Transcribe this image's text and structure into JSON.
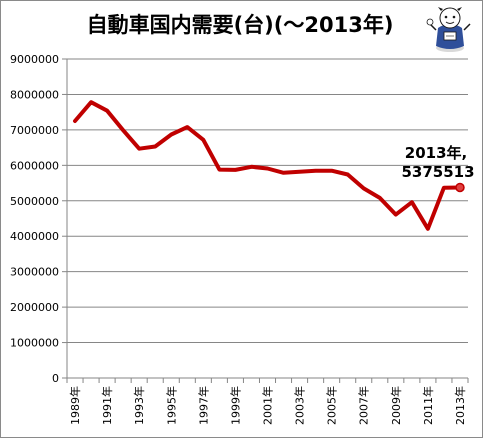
{
  "chart_data": {
    "type": "line",
    "title": "自動車国内需要(台)(〜2013年)",
    "xlabel": "",
    "ylabel": "",
    "ylim": [
      0,
      9000000
    ],
    "yticks": [
      0,
      1000000,
      2000000,
      3000000,
      4000000,
      5000000,
      6000000,
      7000000,
      8000000,
      9000000
    ],
    "ytick_labels": [
      "0",
      "1000000",
      "2000000",
      "3000000",
      "4000000",
      "5000000",
      "6000000",
      "7000000",
      "8000000",
      "9000000"
    ],
    "categories": [
      "1989年",
      "1990年",
      "1991年",
      "1992年",
      "1993年",
      "1994年",
      "1995年",
      "1996年",
      "1997年",
      "1998年",
      "1999年",
      "2000年",
      "2001年",
      "2002年",
      "2003年",
      "2004年",
      "2005年",
      "2006年",
      "2007年",
      "2008年",
      "2009年",
      "2010年",
      "2011年",
      "2012年",
      "2013年"
    ],
    "xtick_labels": [
      "1989年",
      "",
      "1991年",
      "",
      "1993年",
      "",
      "1995年",
      "",
      "1997年",
      "",
      "1999年",
      "",
      "2001年",
      "",
      "2003年",
      "",
      "2005年",
      "",
      "2007年",
      "",
      "2009年",
      "",
      "2011年",
      "",
      "2013年"
    ],
    "series": [
      {
        "values": [
          7250000,
          7780000,
          7540000,
          6990000,
          6470000,
          6530000,
          6870000,
          7080000,
          6720000,
          5880000,
          5870000,
          5960000,
          5910000,
          5790000,
          5820000,
          5850000,
          5850000,
          5740000,
          5350000,
          5080000,
          4610000,
          4960000,
          4210000,
          5370000,
          5375513
        ],
        "color": "#c00000"
      }
    ],
    "grid": true,
    "legend": "none",
    "annotation": {
      "line1": "2013年,",
      "line2": "5375513"
    }
  }
}
